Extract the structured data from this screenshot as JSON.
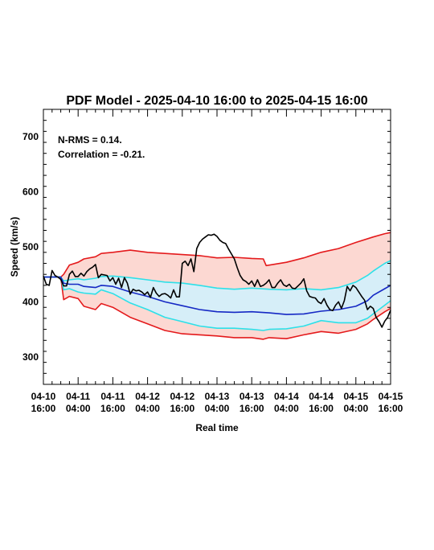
{
  "chart_data": {
    "type": "line",
    "title": "PDF Model - 2025-04-10 16:00 to 2025-04-15 16:00",
    "xlabel": "Real time",
    "ylabel": "Speed (km/s)",
    "annotations": [
      "N-RMS = 0.14.",
      "Correlation = -0.21."
    ],
    "xlim": [
      0,
      120
    ],
    "ylim": [
      250,
      750
    ],
    "x_tick_values": [
      0,
      12,
      24,
      36,
      48,
      60,
      72,
      84,
      96,
      108,
      120
    ],
    "x_tick_labels": [
      [
        "04-10",
        "16:00"
      ],
      [
        "04-11",
        "04:00"
      ],
      [
        "04-11",
        "16:00"
      ],
      [
        "04-12",
        "04:00"
      ],
      [
        "04-12",
        "16:00"
      ],
      [
        "04-13",
        "04:00"
      ],
      [
        "04-13",
        "16:00"
      ],
      [
        "04-14",
        "04:00"
      ],
      [
        "04-14",
        "16:00"
      ],
      [
        "04-15",
        "04:00"
      ],
      [
        "04-15",
        "16:00"
      ]
    ],
    "y_ticks": [
      300,
      400,
      500,
      600,
      700
    ],
    "grid": false,
    "colors": {
      "outer_band_fill": "#fcd8d2",
      "inner_band_fill": "#d6eef8",
      "outer_bound": "#e41a1c",
      "inner_bound": "#2de0e8",
      "median": "#1528c4",
      "observed": "#000000"
    },
    "series": [
      {
        "role": "upper_outer",
        "x": [
          0,
          6,
          7,
          9,
          12,
          14,
          18,
          20,
          24,
          30,
          36,
          42,
          48,
          54,
          60,
          66,
          72,
          76,
          77,
          84,
          90,
          96,
          102,
          108,
          114,
          118,
          120
        ],
        "values": [
          445,
          445,
          450,
          467,
          472,
          478,
          482,
          488,
          490,
          494,
          490,
          488,
          486,
          484,
          480,
          481,
          479,
          478,
          466,
          472,
          480,
          490,
          497,
          508,
          518,
          524,
          526
        ]
      },
      {
        "role": "upper_inner",
        "x": [
          0,
          6,
          7,
          9,
          12,
          14,
          18,
          20,
          24,
          30,
          36,
          42,
          48,
          54,
          60,
          66,
          72,
          78,
          84,
          90,
          96,
          102,
          108,
          112,
          114,
          118,
          120
        ],
        "values": [
          445,
          445,
          438,
          440,
          442,
          440,
          443,
          446,
          447,
          444,
          440,
          436,
          434,
          430,
          425,
          423,
          425,
          423,
          422,
          424,
          422,
          426,
          436,
          448,
          456,
          470,
          475
        ]
      },
      {
        "role": "median",
        "x": [
          0,
          6,
          7,
          9,
          12,
          14,
          18,
          20,
          24,
          30,
          36,
          42,
          48,
          54,
          60,
          66,
          72,
          78,
          84,
          90,
          96,
          102,
          108,
          112,
          114,
          118,
          120
        ],
        "values": [
          445,
          445,
          434,
          432,
          432,
          428,
          426,
          430,
          428,
          418,
          410,
          400,
          393,
          386,
          382,
          381,
          382,
          380,
          377,
          378,
          383,
          386,
          392,
          402,
          412,
          424,
          430
        ]
      },
      {
        "role": "lower_inner",
        "x": [
          0,
          6,
          7,
          9,
          12,
          14,
          18,
          20,
          24,
          30,
          36,
          42,
          48,
          54,
          60,
          66,
          72,
          76,
          78,
          84,
          90,
          96,
          102,
          108,
          112,
          114,
          118,
          120
        ],
        "values": [
          445,
          445,
          422,
          424,
          418,
          416,
          414,
          422,
          415,
          398,
          386,
          372,
          364,
          356,
          352,
          352,
          350,
          348,
          350,
          351,
          356,
          366,
          362,
          362,
          370,
          378,
          394,
          402
        ]
      },
      {
        "role": "lower_outer",
        "x": [
          0,
          6,
          7,
          9,
          12,
          14,
          18,
          20,
          24,
          30,
          36,
          42,
          48,
          54,
          60,
          66,
          72,
          76,
          78,
          84,
          90,
          96,
          102,
          108,
          112,
          114,
          118,
          120
        ],
        "values": [
          445,
          445,
          404,
          410,
          406,
          392,
          386,
          397,
          390,
          372,
          360,
          348,
          342,
          340,
          338,
          335,
          335,
          332,
          335,
          333,
          340,
          346,
          343,
          350,
          360,
          368,
          382,
          388
        ]
      },
      {
        "role": "observed",
        "x": [
          0,
          1,
          2,
          3,
          4,
          5,
          6,
          7,
          8,
          9,
          10,
          11,
          12,
          13,
          14,
          15,
          16,
          17,
          18,
          19,
          20,
          21,
          22,
          23,
          24,
          25,
          26,
          27,
          28,
          29,
          30,
          31,
          32,
          33,
          34,
          35,
          36,
          37,
          38,
          39,
          40,
          41,
          42,
          43,
          44,
          45,
          46,
          47,
          48,
          49,
          50,
          51,
          52,
          53,
          54,
          55,
          56,
          57,
          58,
          59,
          60,
          61,
          62,
          63,
          64,
          65,
          66,
          67,
          68,
          69,
          70,
          71,
          72,
          73,
          74,
          75,
          76,
          77,
          78,
          79,
          80,
          81,
          82,
          83,
          84,
          85,
          86,
          87,
          88,
          89,
          90,
          91,
          92,
          93,
          94,
          95,
          96,
          97,
          98,
          99,
          100,
          101,
          102,
          103,
          104,
          105,
          106,
          107,
          108,
          109,
          110,
          111,
          112,
          113,
          114,
          115,
          116,
          117,
          118,
          119,
          120
        ],
        "values": [
          447,
          432,
          430,
          457,
          448,
          445,
          441,
          429,
          429,
          450,
          456,
          446,
          446,
          452,
          447,
          455,
          460,
          463,
          468,
          444,
          450,
          449,
          448,
          438,
          444,
          432,
          443,
          426,
          444,
          434,
          414,
          423,
          420,
          421,
          418,
          413,
          418,
          408,
          426,
          416,
          410,
          414,
          415,
          412,
          407,
          422,
          409,
          409,
          470,
          474,
          466,
          478,
          455,
          497,
          508,
          514,
          518,
          522,
          521,
          523,
          519,
          512,
          508,
          506,
          496,
          487,
          478,
          462,
          448,
          440,
          437,
          432,
          438,
          428,
          440,
          428,
          430,
          434,
          440,
          426,
          426,
          434,
          440,
          431,
          428,
          432,
          425,
          424,
          429,
          434,
          442,
          420,
          410,
          408,
          407,
          400,
          397,
          406,
          394,
          386,
          384,
          394,
          400,
          388,
          402,
          428,
          420,
          430,
          426,
          418,
          410,
          403,
          386,
          392,
          388,
          372,
          364,
          354,
          365,
          372,
          385
        ]
      }
    ]
  }
}
